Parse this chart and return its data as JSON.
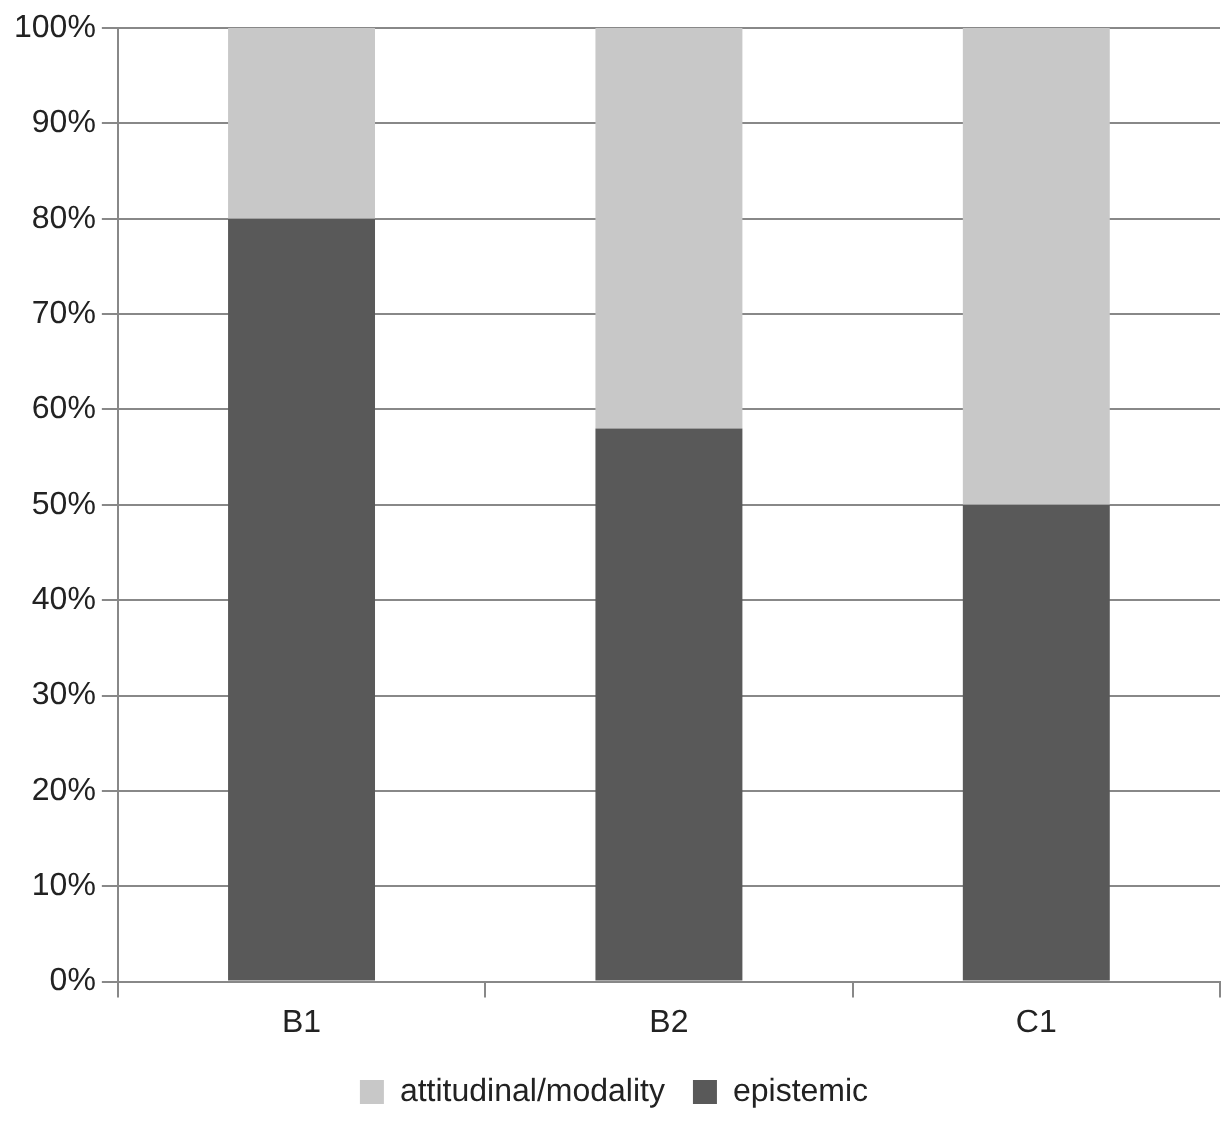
{
  "chart_data": {
    "type": "bar",
    "stacked": true,
    "categories": [
      "B1",
      "B2",
      "C1"
    ],
    "series": [
      {
        "name": "epistemic",
        "color": "#595959",
        "values": [
          80,
          58,
          50
        ]
      },
      {
        "name": "attitudinal/modality",
        "color": "#c8c8c8",
        "values": [
          20,
          42,
          50
        ]
      }
    ],
    "ylim": [
      0,
      100
    ],
    "yticks": [
      {
        "value": 0,
        "label": "0%"
      },
      {
        "value": 10,
        "label": "10%"
      },
      {
        "value": 20,
        "label": "20%"
      },
      {
        "value": 30,
        "label": "30%"
      },
      {
        "value": 40,
        "label": "40%"
      },
      {
        "value": 50,
        "label": "50%"
      },
      {
        "value": 60,
        "label": "60%"
      },
      {
        "value": 70,
        "label": "70%"
      },
      {
        "value": 80,
        "label": "80%"
      },
      {
        "value": 90,
        "label": "90%"
      },
      {
        "value": 100,
        "label": "100%"
      }
    ],
    "grid": "y",
    "legend": "bottom"
  }
}
